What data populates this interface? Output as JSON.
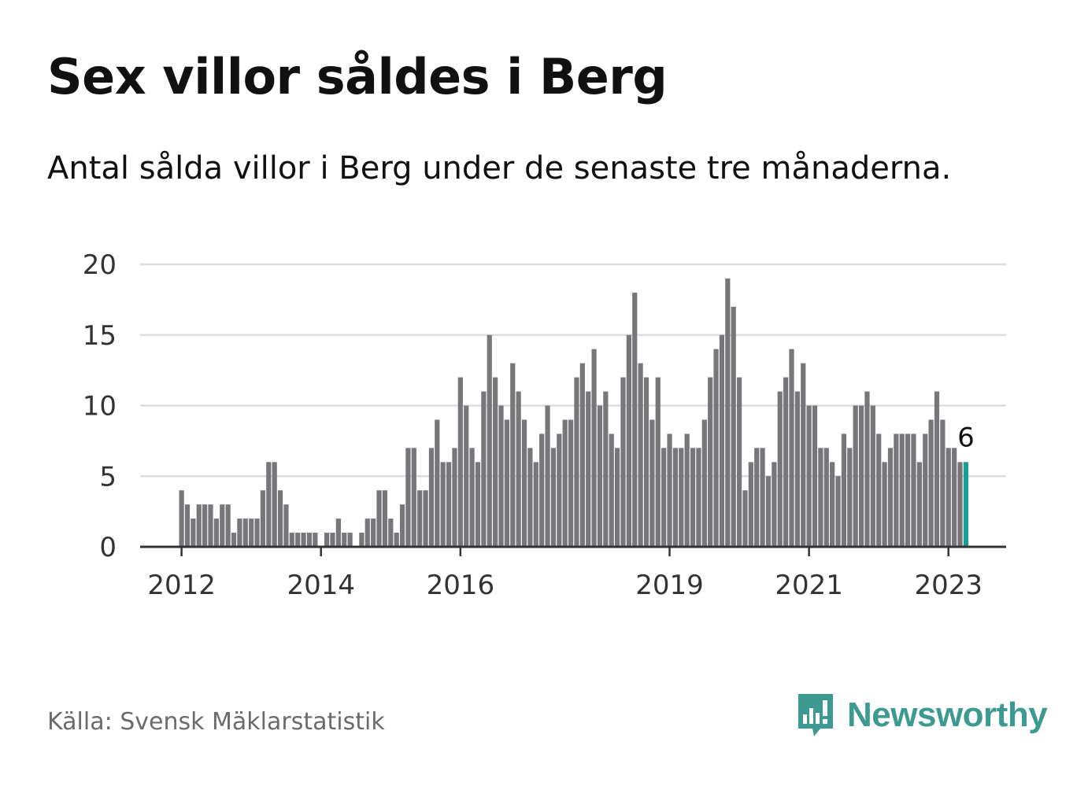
{
  "header": {
    "title": "Sex villor såldes i Berg",
    "subtitle": "Antal sålda villor i Berg under de senaste tre månaderna."
  },
  "footer": {
    "source": "Källa: Svensk Mäklarstatistik",
    "brand": "Newsworthy"
  },
  "colors": {
    "bar": "#76767b",
    "highlight": "#1a9e92",
    "grid": "#dddddd",
    "axis": "#333333",
    "brand": "#3d9a91"
  },
  "icons": {
    "logo": "bar-chart-speech-bubble-icon"
  },
  "chart_data": {
    "type": "bar",
    "x_unit": "month",
    "start": "2012-01",
    "ylim": [
      0,
      20
    ],
    "yticks": [
      0,
      5,
      10,
      15,
      20
    ],
    "xticks": [
      {
        "label": "2012",
        "month": "2012-01"
      },
      {
        "label": "2014",
        "month": "2014-01"
      },
      {
        "label": "2016",
        "month": "2016-01"
      },
      {
        "label": "2019",
        "month": "2019-01"
      },
      {
        "label": "2021",
        "month": "2021-01"
      },
      {
        "label": "2023",
        "month": "2023-01"
      }
    ],
    "grid": true,
    "highlight_last": true,
    "last_label": "6",
    "values": [
      4,
      3,
      2,
      3,
      3,
      3,
      2,
      3,
      3,
      1,
      2,
      2,
      2,
      2,
      4,
      6,
      6,
      4,
      3,
      1,
      1,
      1,
      1,
      1,
      0,
      1,
      1,
      2,
      1,
      1,
      0,
      1,
      2,
      2,
      4,
      4,
      2,
      1,
      3,
      7,
      7,
      4,
      4,
      7,
      9,
      6,
      6,
      7,
      12,
      10,
      7,
      6,
      11,
      15,
      12,
      10,
      9,
      13,
      11,
      9,
      7,
      6,
      8,
      10,
      7,
      8,
      9,
      9,
      12,
      13,
      11,
      14,
      10,
      11,
      8,
      7,
      12,
      15,
      18,
      13,
      12,
      9,
      12,
      7,
      8,
      7,
      7,
      8,
      7,
      7,
      9,
      12,
      14,
      15,
      19,
      17,
      12,
      4,
      6,
      7,
      7,
      5,
      6,
      11,
      12,
      14,
      11,
      13,
      10,
      10,
      7,
      7,
      6,
      5,
      8,
      7,
      10,
      10,
      11,
      10,
      8,
      6,
      7,
      8,
      8,
      8,
      8,
      6,
      8,
      9,
      11,
      9,
      7,
      7,
      6,
      6
    ]
  }
}
